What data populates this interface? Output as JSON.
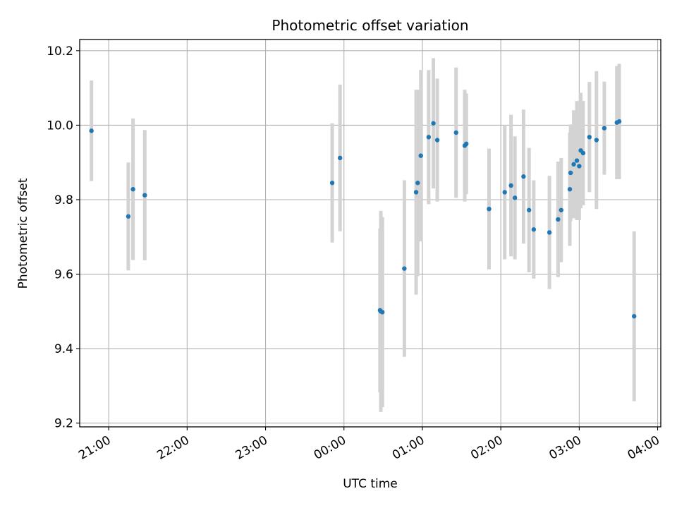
{
  "chart_data": {
    "type": "scatter",
    "title": "Photometric offset variation",
    "xlabel": "UTC time",
    "ylabel": "Photometric offset",
    "xlim": [
      -3.37,
      4.04
    ],
    "ylim": [
      9.19,
      10.23
    ],
    "x_ticks": [
      {
        "value": -3,
        "label": "21:00"
      },
      {
        "value": -2,
        "label": "22:00"
      },
      {
        "value": -1,
        "label": "23:00"
      },
      {
        "value": 0,
        "label": "00:00"
      },
      {
        "value": 1,
        "label": "01:00"
      },
      {
        "value": 2,
        "label": "02:00"
      },
      {
        "value": 3,
        "label": "03:00"
      },
      {
        "value": 4,
        "label": "04:00"
      }
    ],
    "y_ticks": [
      {
        "value": 9.2,
        "label": "9.2"
      },
      {
        "value": 9.4,
        "label": "9.4"
      },
      {
        "value": 9.6,
        "label": "9.6"
      },
      {
        "value": 9.8,
        "label": "9.8"
      },
      {
        "value": 10.0,
        "label": "10.0"
      },
      {
        "value": 10.2,
        "label": "10.2"
      }
    ],
    "grid": true,
    "point_color": "#1f77b4",
    "errorbar_color": "#d3d3d3",
    "points": [
      {
        "x": -3.22,
        "y": 9.985,
        "err": 0.135
      },
      {
        "x": -2.75,
        "y": 9.755,
        "err": 0.145
      },
      {
        "x": -2.69,
        "y": 9.828,
        "err": 0.19
      },
      {
        "x": -2.54,
        "y": 9.812,
        "err": 0.175
      },
      {
        "x": -0.15,
        "y": 9.845,
        "err": 0.16
      },
      {
        "x": -0.05,
        "y": 9.912,
        "err": 0.197
      },
      {
        "x": 0.46,
        "y": 9.503,
        "err": 0.22
      },
      {
        "x": 0.47,
        "y": 9.5,
        "err": 0.27
      },
      {
        "x": 0.49,
        "y": 9.498,
        "err": 0.255
      },
      {
        "x": 0.77,
        "y": 9.615,
        "err": 0.237
      },
      {
        "x": 0.92,
        "y": 9.82,
        "err": 0.275
      },
      {
        "x": 0.94,
        "y": 9.845,
        "err": 0.25
      },
      {
        "x": 0.98,
        "y": 9.918,
        "err": 0.23
      },
      {
        "x": 1.08,
        "y": 9.968,
        "err": 0.18
      },
      {
        "x": 1.14,
        "y": 10.005,
        "err": 0.175
      },
      {
        "x": 1.19,
        "y": 9.96,
        "err": 0.165
      },
      {
        "x": 1.43,
        "y": 9.98,
        "err": 0.175
      },
      {
        "x": 1.54,
        "y": 9.945,
        "err": 0.15
      },
      {
        "x": 1.56,
        "y": 9.95,
        "err": 0.135
      },
      {
        "x": 1.85,
        "y": 9.775,
        "err": 0.162
      },
      {
        "x": 2.05,
        "y": 9.82,
        "err": 0.18
      },
      {
        "x": 2.13,
        "y": 9.838,
        "err": 0.19
      },
      {
        "x": 2.18,
        "y": 9.805,
        "err": 0.165
      },
      {
        "x": 2.29,
        "y": 9.862,
        "err": 0.18
      },
      {
        "x": 2.36,
        "y": 9.772,
        "err": 0.167
      },
      {
        "x": 2.42,
        "y": 9.72,
        "err": 0.132
      },
      {
        "x": 2.62,
        "y": 9.712,
        "err": 0.152
      },
      {
        "x": 2.73,
        "y": 9.747,
        "err": 0.155
      },
      {
        "x": 2.77,
        "y": 9.772,
        "err": 0.14
      },
      {
        "x": 2.88,
        "y": 9.828,
        "err": 0.152
      },
      {
        "x": 2.89,
        "y": 9.872,
        "err": 0.13
      },
      {
        "x": 2.93,
        "y": 9.895,
        "err": 0.145
      },
      {
        "x": 2.97,
        "y": 9.905,
        "err": 0.16
      },
      {
        "x": 3.0,
        "y": 9.89,
        "err": 0.145
      },
      {
        "x": 3.02,
        "y": 9.932,
        "err": 0.155
      },
      {
        "x": 3.05,
        "y": 9.925,
        "err": 0.14
      },
      {
        "x": 3.13,
        "y": 9.968,
        "err": 0.148
      },
      {
        "x": 3.22,
        "y": 9.96,
        "err": 0.185
      },
      {
        "x": 3.32,
        "y": 9.992,
        "err": 0.125
      },
      {
        "x": 3.48,
        "y": 10.007,
        "err": 0.152
      },
      {
        "x": 3.51,
        "y": 10.01,
        "err": 0.155
      },
      {
        "x": 3.7,
        "y": 9.487,
        "err": 0.228
      }
    ]
  }
}
